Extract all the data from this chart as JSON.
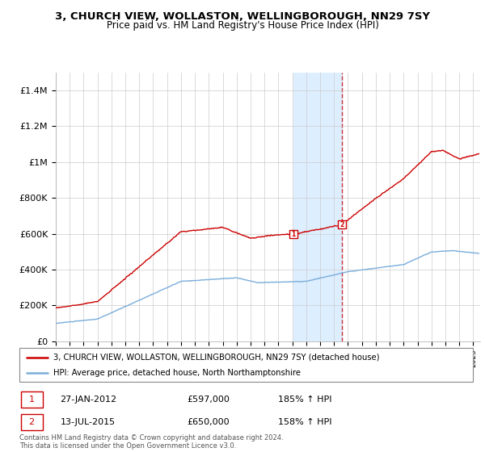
{
  "title": "3, CHURCH VIEW, WOLLASTON, WELLINGBOROUGH, NN29 7SY",
  "subtitle": "Price paid vs. HM Land Registry's House Price Index (HPI)",
  "sale1_date": 2012.07,
  "sale1_price": 597000,
  "sale1_label": "1",
  "sale1_display": "27-JAN-2012",
  "sale1_hpi_pct": "185% ↑ HPI",
  "sale2_date": 2015.54,
  "sale2_price": 650000,
  "sale2_label": "2",
  "sale2_display": "13-JUL-2015",
  "sale2_hpi_pct": "158% ↑ HPI",
  "legend_line1": "3, CHURCH VIEW, WOLLASTON, WELLINGBOROUGH, NN29 7SY (detached house)",
  "legend_line2": "HPI: Average price, detached house, North Northamptonshire",
  "footnote": "Contains HM Land Registry data © Crown copyright and database right 2024.\nThis data is licensed under the Open Government Licence v3.0.",
  "red_color": "#cc0000",
  "blue_color": "#7aaddb",
  "highlight_color": "#ddeeff",
  "dashed_color": "#cc0000",
  "ylim": [
    0,
    1500000
  ],
  "yticks": [
    0,
    200000,
    400000,
    600000,
    800000,
    1000000,
    1200000,
    1400000
  ],
  "ytick_labels": [
    "£0",
    "£200K",
    "£400K",
    "£600K",
    "£800K",
    "£1M",
    "£1.2M",
    "£1.4M"
  ],
  "xstart": 1995,
  "xend": 2025.5
}
